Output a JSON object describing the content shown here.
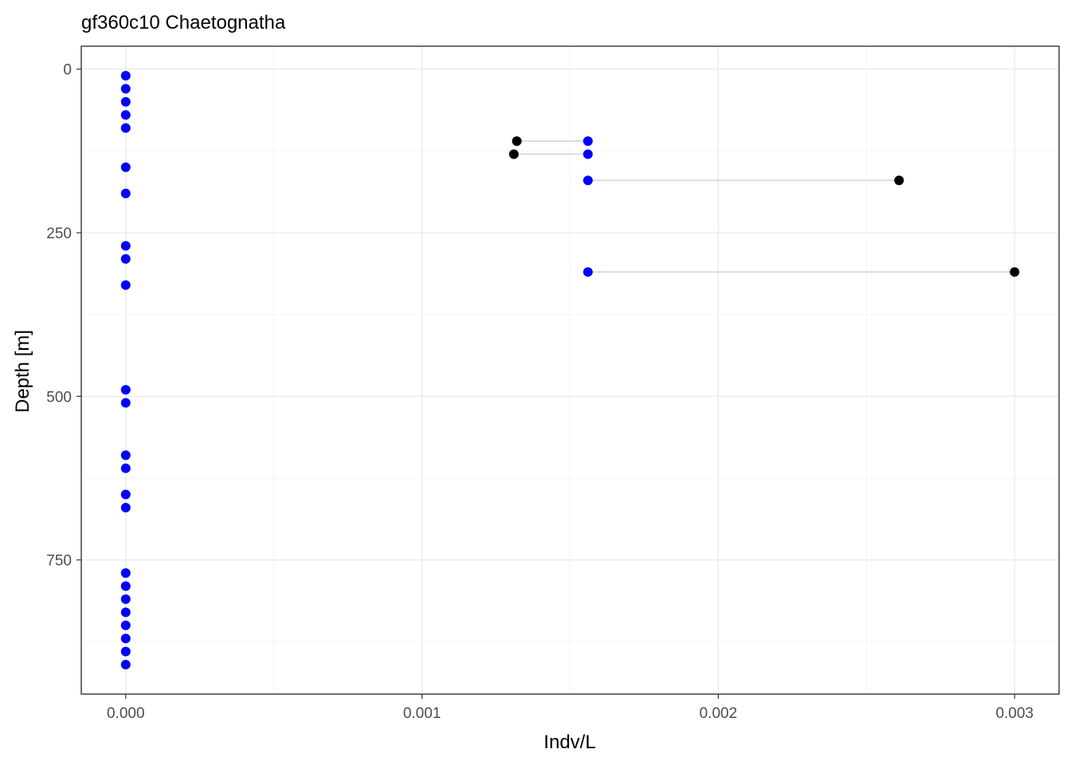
{
  "chart_data": {
    "type": "scatter",
    "title": "gf360c10 Chaetognatha",
    "xlabel": "Indv/L",
    "ylabel": "Depth [m]",
    "xlim": [
      -0.00015,
      0.00315
    ],
    "ylim": [
      -35,
      955
    ],
    "y_reversed": true,
    "x_ticks": [
      0.0,
      0.001,
      0.002,
      0.003
    ],
    "x_tick_labels": [
      "0.000",
      "0.001",
      "0.002",
      "0.003"
    ],
    "y_ticks": [
      0,
      250,
      500,
      750
    ],
    "y_tick_labels": [
      "0",
      "250",
      "500",
      "750"
    ],
    "grid": true,
    "legend": "none",
    "colors": {
      "blue_series": "#0000ff",
      "black_series": "#000000",
      "connector": "#d3d3d3"
    },
    "series": [
      {
        "color": "#0000ff",
        "points": [
          {
            "x": 0.0,
            "y": 10
          },
          {
            "x": 0.0,
            "y": 30
          },
          {
            "x": 0.0,
            "y": 50
          },
          {
            "x": 0.0,
            "y": 70
          },
          {
            "x": 0.0,
            "y": 90
          },
          {
            "x": 0.00156,
            "y": 110
          },
          {
            "x": 0.00156,
            "y": 130
          },
          {
            "x": 0.0,
            "y": 150
          },
          {
            "x": 0.00156,
            "y": 170
          },
          {
            "x": 0.0,
            "y": 190
          },
          {
            "x": 0.0,
            "y": 270
          },
          {
            "x": 0.0,
            "y": 290
          },
          {
            "x": 0.00156,
            "y": 310
          },
          {
            "x": 0.0,
            "y": 330
          },
          {
            "x": 0.0,
            "y": 490
          },
          {
            "x": 0.0,
            "y": 510
          },
          {
            "x": 0.0,
            "y": 590
          },
          {
            "x": 0.0,
            "y": 610
          },
          {
            "x": 0.0,
            "y": 650
          },
          {
            "x": 0.0,
            "y": 670
          },
          {
            "x": 0.0,
            "y": 770
          },
          {
            "x": 0.0,
            "y": 790
          },
          {
            "x": 0.0,
            "y": 810
          },
          {
            "x": 0.0,
            "y": 830
          },
          {
            "x": 0.0,
            "y": 850
          },
          {
            "x": 0.0,
            "y": 870
          },
          {
            "x": 0.0,
            "y": 890
          },
          {
            "x": 0.0,
            "y": 910
          }
        ]
      },
      {
        "color": "#000000",
        "points": [
          {
            "x": 0.00132,
            "y": 110
          },
          {
            "x": 0.00131,
            "y": 130
          },
          {
            "x": 0.00261,
            "y": 170
          },
          {
            "x": 0.003,
            "y": 310
          }
        ]
      }
    ],
    "segments": [
      {
        "x1": 0.00132,
        "x2": 0.00156,
        "y": 110
      },
      {
        "x1": 0.00131,
        "x2": 0.00156,
        "y": 130
      },
      {
        "x1": 0.00156,
        "x2": 0.00261,
        "y": 170
      },
      {
        "x1": 0.00156,
        "x2": 0.003,
        "y": 310
      }
    ]
  }
}
